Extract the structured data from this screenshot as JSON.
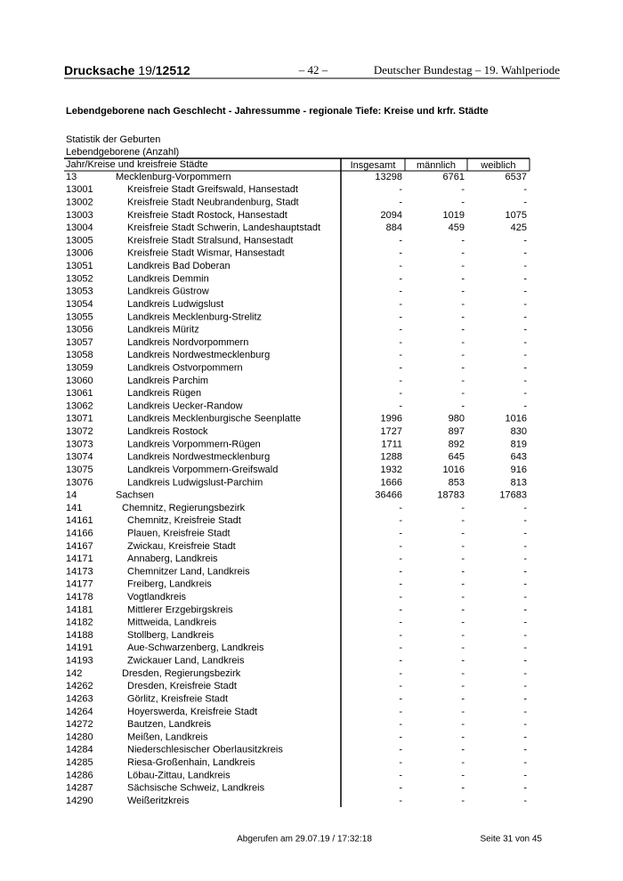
{
  "header": {
    "doc_label": "Drucksache",
    "number_prefix": "19/",
    "number": "12512",
    "page": "– 42 –",
    "publisher": "Deutscher Bundestag – 19. Wahlperiode"
  },
  "title": "Lebendgeborene nach Geschlecht - Jahressumme - regionale Tiefe: Kreise und krfr. Städte",
  "subtitle_1": "Statistik der Geburten",
  "subtitle_2": "Lebendgeborene (Anzahl)",
  "table": {
    "columns": [
      "Jahr/Kreise und kreisfreie Städte",
      "Insgesamt",
      "männlich",
      "weiblich"
    ],
    "rows": [
      [
        "13",
        "Mecklenburg-Vorpommern",
        13298,
        6761,
        6537
      ],
      [
        "13001",
        "Kreisfreie Stadt Greifswald, Hansestadt",
        "-",
        "-",
        "-"
      ],
      [
        "13002",
        "Kreisfreie Stadt Neubrandenburg, Stadt",
        "-",
        "-",
        "-"
      ],
      [
        "13003",
        "Kreisfreie Stadt Rostock, Hansestadt",
        2094,
        1019,
        1075
      ],
      [
        "13004",
        "Kreisfreie Stadt Schwerin, Landeshauptstadt",
        884,
        459,
        425
      ],
      [
        "13005",
        "Kreisfreie Stadt Stralsund, Hansestadt",
        "-",
        "-",
        "-"
      ],
      [
        "13006",
        "Kreisfreie Stadt Wismar, Hansestadt",
        "-",
        "-",
        "-"
      ],
      [
        "13051",
        "Landkreis Bad Doberan",
        "-",
        "-",
        "-"
      ],
      [
        "13052",
        "Landkreis Demmin",
        "-",
        "-",
        "-"
      ],
      [
        "13053",
        "Landkreis Güstrow",
        "-",
        "-",
        "-"
      ],
      [
        "13054",
        "Landkreis Ludwigslust",
        "-",
        "-",
        "-"
      ],
      [
        "13055",
        "Landkreis Mecklenburg-Strelitz",
        "-",
        "-",
        "-"
      ],
      [
        "13056",
        "Landkreis Müritz",
        "-",
        "-",
        "-"
      ],
      [
        "13057",
        "Landkreis Nordvorpommern",
        "-",
        "-",
        "-"
      ],
      [
        "13058",
        "Landkreis Nordwestmecklenburg",
        "-",
        "-",
        "-"
      ],
      [
        "13059",
        "Landkreis Ostvorpommern",
        "-",
        "-",
        "-"
      ],
      [
        "13060",
        "Landkreis Parchim",
        "-",
        "-",
        "-"
      ],
      [
        "13061",
        "Landkreis Rügen",
        "-",
        "-",
        "-"
      ],
      [
        "13062",
        "Landkreis Uecker-Randow",
        "-",
        "-",
        "-"
      ],
      [
        "13071",
        "Landkreis Mecklenburgische Seenplatte",
        1996,
        980,
        1016
      ],
      [
        "13072",
        "Landkreis Rostock",
        1727,
        897,
        830
      ],
      [
        "13073",
        "Landkreis Vorpommern-Rügen",
        1711,
        892,
        819
      ],
      [
        "13074",
        "Landkreis Nordwestmecklenburg",
        1288,
        645,
        643
      ],
      [
        "13075",
        "Landkreis Vorpommern-Greifswald",
        1932,
        1016,
        916
      ],
      [
        "13076",
        "Landkreis Ludwigslust-Parchim",
        1666,
        853,
        813
      ],
      [
        "14",
        "Sachsen",
        36466,
        18783,
        17683
      ],
      [
        "141",
        "Chemnitz, Regierungsbezirk",
        "-",
        "-",
        "-"
      ],
      [
        "14161",
        "Chemnitz, Kreisfreie Stadt",
        "-",
        "-",
        "-"
      ],
      [
        "14166",
        "Plauen, Kreisfreie Stadt",
        "-",
        "-",
        "-"
      ],
      [
        "14167",
        "Zwickau, Kreisfreie Stadt",
        "-",
        "-",
        "-"
      ],
      [
        "14171",
        "Annaberg, Landkreis",
        "-",
        "-",
        "-"
      ],
      [
        "14173",
        "Chemnitzer Land, Landkreis",
        "-",
        "-",
        "-"
      ],
      [
        "14177",
        "Freiberg, Landkreis",
        "-",
        "-",
        "-"
      ],
      [
        "14178",
        "Vogtlandkreis",
        "-",
        "-",
        "-"
      ],
      [
        "14181",
        "Mittlerer Erzgebirgskreis",
        "-",
        "-",
        "-"
      ],
      [
        "14182",
        "Mittweida, Landkreis",
        "-",
        "-",
        "-"
      ],
      [
        "14188",
        "Stollberg, Landkreis",
        "-",
        "-",
        "-"
      ],
      [
        "14191",
        "Aue-Schwarzenberg, Landkreis",
        "-",
        "-",
        "-"
      ],
      [
        "14193",
        "Zwickauer Land, Landkreis",
        "-",
        "-",
        "-"
      ],
      [
        "142",
        "Dresden, Regierungsbezirk",
        "-",
        "-",
        "-"
      ],
      [
        "14262",
        "Dresden, Kreisfreie Stadt",
        "-",
        "-",
        "-"
      ],
      [
        "14263",
        "Görlitz, Kreisfreie Stadt",
        "-",
        "-",
        "-"
      ],
      [
        "14264",
        "Hoyerswerda, Kreisfreie Stadt",
        "-",
        "-",
        "-"
      ],
      [
        "14272",
        "Bautzen, Landkreis",
        "-",
        "-",
        "-"
      ],
      [
        "14280",
        "Meißen, Landkreis",
        "-",
        "-",
        "-"
      ],
      [
        "14284",
        "Niederschlesischer Oberlausitzkreis",
        "-",
        "-",
        "-"
      ],
      [
        "14285",
        "Riesa-Großenhain, Landkreis",
        "-",
        "-",
        "-"
      ],
      [
        "14286",
        "Löbau-Zittau, Landkreis",
        "-",
        "-",
        "-"
      ],
      [
        "14287",
        "Sächsische Schweiz, Landkreis",
        "-",
        "-",
        "-"
      ],
      [
        "14290",
        "Weißeritzkreis",
        "-",
        "-",
        "-"
      ]
    ]
  },
  "footer": {
    "retrieved": "Abgerufen am 29.07.19 / 17:32:18",
    "page": "Seite 31 von 45"
  }
}
